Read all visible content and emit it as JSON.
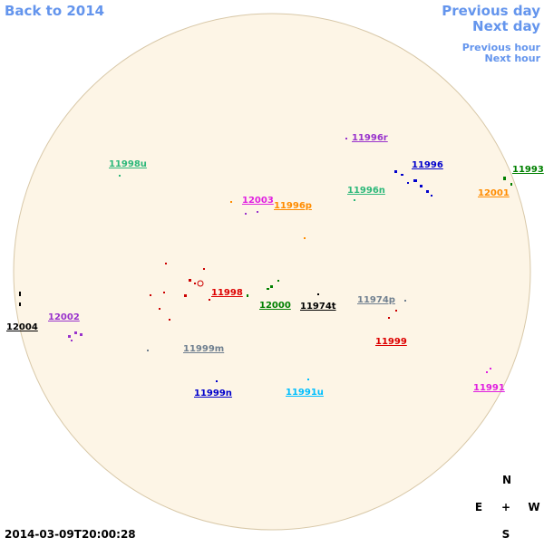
{
  "nav": {
    "back": "Back to 2014",
    "previous_day": "Previous day",
    "next_day": "Next day",
    "previous_hour": "Previous hour",
    "next_hour": "Next hour"
  },
  "regions": [
    {
      "label": "11998u"
    },
    {
      "label": "11996r"
    },
    {
      "label": "11996"
    },
    {
      "label": "11993"
    },
    {
      "label": "12001"
    },
    {
      "label": "11996n"
    },
    {
      "label": "12003"
    },
    {
      "label": "11996p"
    },
    {
      "label": "11998"
    },
    {
      "label": "12000"
    },
    {
      "label": "11974t"
    },
    {
      "label": "11974p"
    },
    {
      "label": "12002"
    },
    {
      "label": "12004"
    },
    {
      "label": "11999"
    },
    {
      "label": "11999m"
    },
    {
      "label": "11999n"
    },
    {
      "label": "11991u"
    },
    {
      "label": "11991"
    }
  ],
  "compass": {
    "north": "N",
    "east": "E",
    "center": "+",
    "west": "W",
    "south": "S"
  },
  "timestamp": "2014-03-09T20:00:28"
}
